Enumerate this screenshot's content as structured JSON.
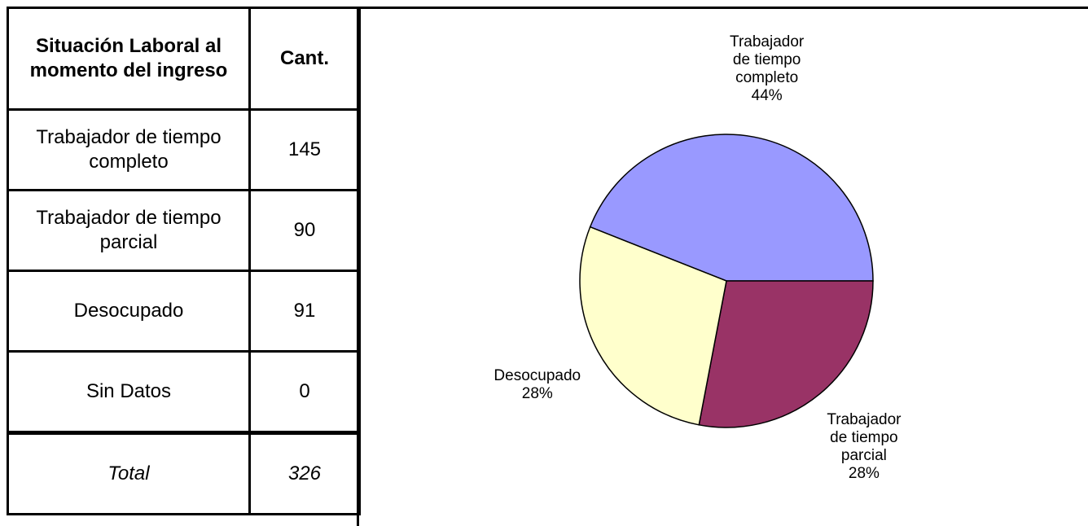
{
  "table": {
    "header": [
      "Situación Laboral al momento del ingreso",
      "Cant."
    ],
    "rows": [
      [
        "Trabajador de tiempo completo",
        145
      ],
      [
        "Trabajador de tiempo parcial",
        90
      ],
      [
        "Desocupado",
        91
      ],
      [
        "Sin Datos",
        0
      ]
    ],
    "total": [
      "Total",
      326
    ]
  },
  "chart_data": {
    "type": "pie",
    "categories": [
      "Trabajador de tiempo completo",
      "Trabajador de tiempo parcial",
      "Desocupado"
    ],
    "values": [
      44,
      28,
      28
    ],
    "value_labels": [
      "44%",
      "28%",
      "28%"
    ],
    "colors": [
      "#9999ff",
      "#993366",
      "#ffffcc"
    ]
  }
}
